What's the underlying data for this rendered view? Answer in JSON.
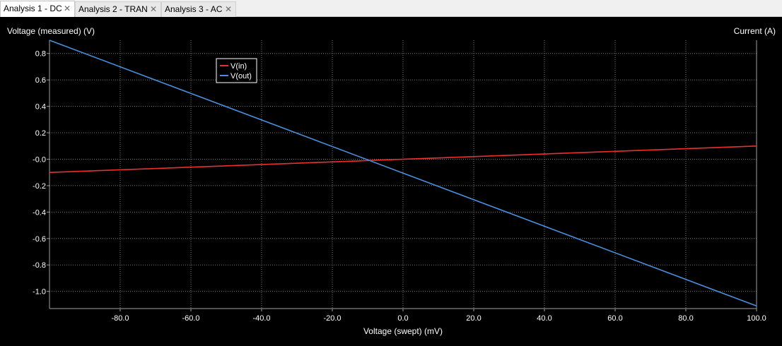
{
  "tabs": [
    {
      "label": "Analysis 1 - DC",
      "active": true
    },
    {
      "label": "Analysis 2 - TRAN",
      "active": false
    },
    {
      "label": "Analysis 3 - AC",
      "active": false
    }
  ],
  "close_glyph": "✕",
  "chart_data": {
    "type": "line",
    "ylabel": "Voltage (measured) (V)",
    "y2label": "Current (A)",
    "xlabel": "Voltage (swept) (mV)",
    "xlim": [
      -100,
      100
    ],
    "ylim": [
      -1.13,
      0.9
    ],
    "xticks": [
      -80,
      -60,
      -40,
      -20,
      0,
      20,
      40,
      60,
      80,
      100
    ],
    "xtick_labels": [
      "-80.0",
      "-60.0",
      "-40.0",
      "-20.0",
      "0.0",
      "20.0",
      "40.0",
      "60.0",
      "80.0",
      "100.0"
    ],
    "yticks": [
      0.8,
      0.6,
      0.4,
      0.2,
      0.0,
      -0.2,
      -0.4,
      -0.6,
      -0.8,
      -1.0
    ],
    "ytick_labels": [
      "0.8",
      "0.6",
      "0.4",
      "0.2",
      "-0.0",
      "-0.2",
      "-0.4",
      "-0.6",
      "-0.8",
      "-1.0"
    ],
    "grid": true,
    "legend_position": "upper-left",
    "series": [
      {
        "name": "V(in)",
        "color": "#e8302f",
        "x": [
          -100,
          100
        ],
        "y": [
          -0.1,
          0.1
        ]
      },
      {
        "name": "V(out)",
        "color": "#4a8fdd",
        "x": [
          -100,
          100
        ],
        "y": [
          0.9,
          -1.11
        ]
      }
    ]
  }
}
